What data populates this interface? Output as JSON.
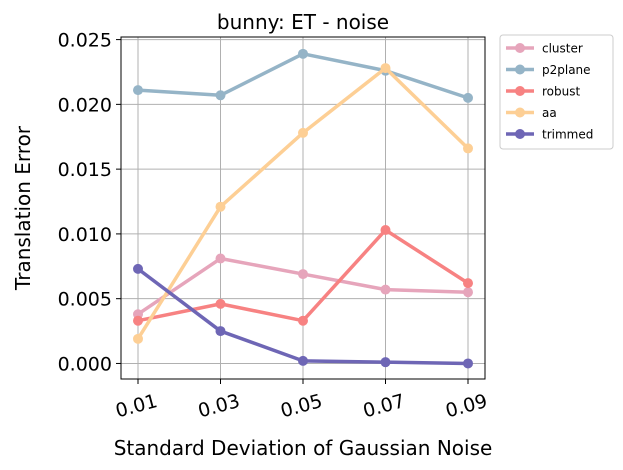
{
  "chart_data": {
    "type": "line",
    "title": "bunny: ET - noise",
    "xlabel": "Standard Deviation of Gaussian Noise",
    "ylabel": "Translation Error",
    "categories": [
      "0.01",
      "0.03",
      "0.05",
      "0.07",
      "0.09"
    ],
    "y_ticks": [
      "0.000",
      "0.005",
      "0.010",
      "0.015",
      "0.020",
      "0.025"
    ],
    "ylim": [
      -0.0012,
      0.0252
    ],
    "grid": true,
    "legend_position": "outside-top-right",
    "series": [
      {
        "name": "cluster",
        "color": "#e6a5bb",
        "values": [
          0.0038,
          0.0081,
          0.0069,
          0.0057,
          0.0055
        ]
      },
      {
        "name": "p2plane",
        "color": "#95b4c7",
        "values": [
          0.0211,
          0.0207,
          0.0239,
          0.0226,
          0.0205
        ]
      },
      {
        "name": "robust",
        "color": "#f78282",
        "values": [
          0.0033,
          0.0046,
          0.0033,
          0.0103,
          0.0062
        ]
      },
      {
        "name": "aa",
        "color": "#fdcf95",
        "values": [
          0.0019,
          0.0121,
          0.0178,
          0.0228,
          0.0166
        ]
      },
      {
        "name": "trimmed",
        "color": "#6e66b5",
        "values": [
          0.0073,
          0.0025,
          0.0002,
          0.0001,
          0.0
        ]
      }
    ]
  }
}
